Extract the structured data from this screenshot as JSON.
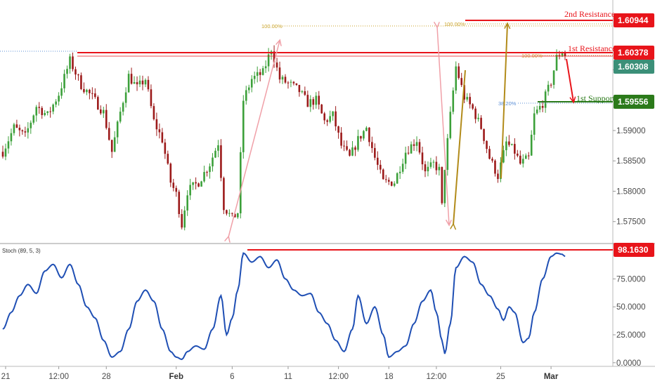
{
  "chart_data": [
    {
      "type": "candlestick",
      "title": "",
      "y_axis": {
        "ticks": [
          1.6,
          1.595,
          1.59,
          1.585,
          1.58,
          1.575
        ],
        "tick_labels": [
          "1.60000",
          "1.59500",
          "1.59000",
          "1.58500",
          "1.58000",
          "1.57500"
        ],
        "ylim": [
          1.5715,
          1.6115
        ]
      },
      "x_axis": {
        "ticks": [
          {
            "label": "21",
            "bar": 1,
            "bold": false
          },
          {
            "label": "12:00",
            "bar": 20,
            "bold": false
          },
          {
            "label": "28",
            "bar": 37,
            "bold": false
          },
          {
            "label": "Feb",
            "bar": 62,
            "bold": true
          },
          {
            "label": "6",
            "bar": 82,
            "bold": false
          },
          {
            "label": "11",
            "bar": 102,
            "bold": false
          },
          {
            "label": "12:00",
            "bar": 120,
            "bold": false
          },
          {
            "label": "18",
            "bar": 138,
            "bold": false
          },
          {
            "label": "12:00",
            "bar": 155,
            "bold": false
          },
          {
            "label": "25",
            "bar": 178,
            "bold": false
          },
          {
            "label": "Mar",
            "bar": 196,
            "bold": true
          }
        ]
      },
      "close_path": [
        [
          0,
          1.5865
        ],
        [
          4,
          1.5905
        ],
        [
          8,
          1.589
        ],
        [
          12,
          1.594
        ],
        [
          16,
          1.5925
        ],
        [
          20,
          1.596
        ],
        [
          24,
          1.6015
        ],
        [
          28,
          1.5975
        ],
        [
          32,
          1.5955
        ],
        [
          36,
          1.593
        ],
        [
          39,
          1.5865
        ],
        [
          42,
          1.593
        ],
        [
          45,
          1.599
        ],
        [
          48,
          1.597
        ],
        [
          51,
          1.5985
        ],
        [
          54,
          1.5915
        ],
        [
          57,
          1.5885
        ],
        [
          60,
          1.5815
        ],
        [
          62,
          1.5795
        ],
        [
          64,
          1.5745
        ],
        [
          66,
          1.58
        ],
        [
          70,
          1.5815
        ],
        [
          74,
          1.5845
        ],
        [
          77,
          1.588
        ],
        [
          79,
          1.5775
        ],
        [
          82,
          1.5755
        ],
        [
          84,
          1.5765
        ],
        [
          86,
          1.595
        ],
        [
          89,
          1.5985
        ],
        [
          93,
          1.5995
        ],
        [
          96,
          1.6035
        ],
        [
          99,
          1.5985
        ],
        [
          103,
          1.5975
        ],
        [
          106,
          1.5965
        ],
        [
          109,
          1.5945
        ],
        [
          112,
          1.595
        ],
        [
          115,
          1.5915
        ],
        [
          118,
          1.5925
        ],
        [
          121,
          1.5875
        ],
        [
          124,
          1.5855
        ],
        [
          127,
          1.5885
        ],
        [
          130,
          1.5905
        ],
        [
          133,
          1.5855
        ],
        [
          136,
          1.5815
        ],
        [
          140,
          1.5815
        ],
        [
          144,
          1.5865
        ],
        [
          148,
          1.5885
        ],
        [
          151,
          1.583
        ],
        [
          154,
          1.5845
        ],
        [
          156,
          1.5835
        ],
        [
          157,
          1.5775
        ],
        [
          158,
          1.584
        ],
        [
          160,
          1.5925
        ],
        [
          162,
          1.6005
        ],
        [
          165,
          1.5955
        ],
        [
          168,
          1.5935
        ],
        [
          171,
          1.5905
        ],
        [
          174,
          1.5855
        ],
        [
          177,
          1.5825
        ],
        [
          180,
          1.588
        ],
        [
          183,
          1.5865
        ],
        [
          185,
          1.5845
        ],
        [
          188,
          1.5855
        ],
        [
          190,
          1.5925
        ],
        [
          193,
          1.5945
        ],
        [
          196,
          1.598
        ],
        [
          198,
          1.602
        ],
        [
          200,
          1.603
        ],
        [
          201,
          1.6025
        ]
      ],
      "price_levels": [
        {
          "label": "2nd Resistance",
          "value": "1.60944",
          "color": "#e8141a"
        },
        {
          "label": "1st Resistance",
          "value": "1.60378",
          "color": "#e8141a"
        },
        {
          "label": "",
          "value": "1.60308",
          "color": "#3b8f78"
        },
        {
          "label": "1st Support",
          "value": "1.59556",
          "color": "#2b7a1a"
        }
      ],
      "fibonacci_labels": [
        {
          "text": "100.00%",
          "color": "#c9a227"
        },
        {
          "text": "100.00%",
          "color": "#c9a227"
        },
        {
          "text": "100.00%",
          "color": "#d08a2a"
        },
        {
          "text": "38.20%",
          "color": "#5b8fd6"
        }
      ],
      "colors": {
        "up": "#3ca03a",
        "down": "#9c1a1a",
        "resistance": "#e8141a",
        "support": "#2b7a1a",
        "abcd": "#f0a0a8",
        "projection": "#b28b1a",
        "arrow": "#e8141a"
      }
    },
    {
      "type": "line",
      "indicator": "Stoch (89, 5, 3)",
      "y_axis": {
        "ticks": [
          0,
          25,
          50,
          75
        ],
        "tick_labels": [
          "0.0000",
          "25.0000",
          "50.0000",
          "75.0000"
        ],
        "ylim": [
          -2,
          106
        ]
      },
      "series": [
        {
          "points": [
            [
              0,
              30
            ],
            [
              3,
              45
            ],
            [
              6,
              60
            ],
            [
              9,
              70
            ],
            [
              12,
              62
            ],
            [
              15,
              82
            ],
            [
              18,
              88
            ],
            [
              21,
              76
            ],
            [
              24,
              88
            ],
            [
              27,
              70
            ],
            [
              30,
              50
            ],
            [
              33,
              40
            ],
            [
              36,
              20
            ],
            [
              39,
              5
            ],
            [
              42,
              10
            ],
            [
              45,
              30
            ],
            [
              48,
              55
            ],
            [
              51,
              65
            ],
            [
              54,
              55
            ],
            [
              57,
              30
            ],
            [
              60,
              10
            ],
            [
              62,
              5
            ],
            [
              64,
              3
            ],
            [
              66,
              10
            ],
            [
              69,
              15
            ],
            [
              72,
              12
            ],
            [
              75,
              30
            ],
            [
              78,
              60
            ],
            [
              80,
              25
            ],
            [
              82,
              40
            ],
            [
              84,
              65
            ],
            [
              86,
              98
            ],
            [
              89,
              90
            ],
            [
              92,
              95
            ],
            [
              95,
              85
            ],
            [
              98,
              92
            ],
            [
              101,
              75
            ],
            [
              104,
              65
            ],
            [
              107,
              60
            ],
            [
              110,
              62
            ],
            [
              113,
              45
            ],
            [
              116,
              35
            ],
            [
              119,
              20
            ],
            [
              122,
              10
            ],
            [
              125,
              30
            ],
            [
              127,
              60
            ],
            [
              130,
              35
            ],
            [
              133,
              50
            ],
            [
              136,
              25
            ],
            [
              138,
              5
            ],
            [
              141,
              10
            ],
            [
              144,
              15
            ],
            [
              147,
              35
            ],
            [
              150,
              55
            ],
            [
              153,
              65
            ],
            [
              155,
              45
            ],
            [
              157,
              20
            ],
            [
              158,
              8
            ],
            [
              160,
              35
            ],
            [
              162,
              85
            ],
            [
              165,
              95
            ],
            [
              168,
              90
            ],
            [
              171,
              70
            ],
            [
              174,
              60
            ],
            [
              177,
              48
            ],
            [
              179,
              38
            ],
            [
              181,
              50
            ],
            [
              183,
              45
            ],
            [
              186,
              18
            ],
            [
              188,
              22
            ],
            [
              190,
              45
            ],
            [
              193,
              75
            ],
            [
              196,
              95
            ],
            [
              198,
              98
            ],
            [
              200,
              97
            ],
            [
              201,
              95
            ]
          ]
        }
      ],
      "levels": [
        {
          "value": "98.1630",
          "color": "#e8141a"
        }
      ]
    }
  ]
}
